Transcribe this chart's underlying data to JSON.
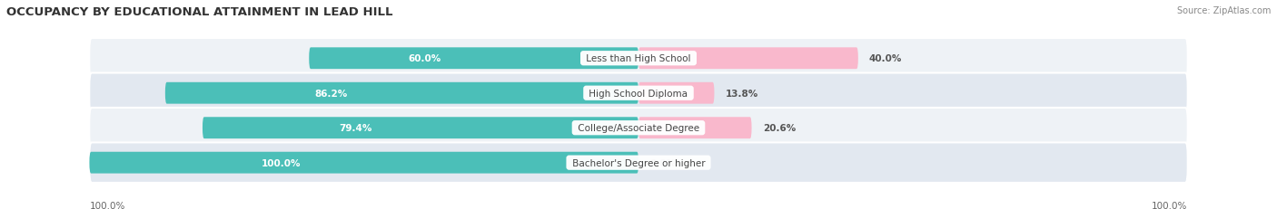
{
  "title": "OCCUPANCY BY EDUCATIONAL ATTAINMENT IN LEAD HILL",
  "source": "Source: ZipAtlas.com",
  "categories": [
    "Less than High School",
    "High School Diploma",
    "College/Associate Degree",
    "Bachelor's Degree or higher"
  ],
  "owner_values": [
    60.0,
    86.2,
    79.4,
    100.0
  ],
  "renter_values": [
    40.0,
    13.8,
    20.6,
    0.0
  ],
  "owner_color": "#4BBFB8",
  "renter_color": "#F07098",
  "renter_color_light": "#F9B8CC",
  "row_bg_colors": [
    "#EEF2F6",
    "#E2E8F0"
  ],
  "bar_bg_color": "#D8DDE6",
  "title_fontsize": 9.5,
  "label_fontsize": 7.5,
  "value_fontsize": 7.5,
  "legend_fontsize": 8,
  "source_fontsize": 7,
  "axis_label_fontsize": 7.5,
  "background_color": "#FFFFFF"
}
